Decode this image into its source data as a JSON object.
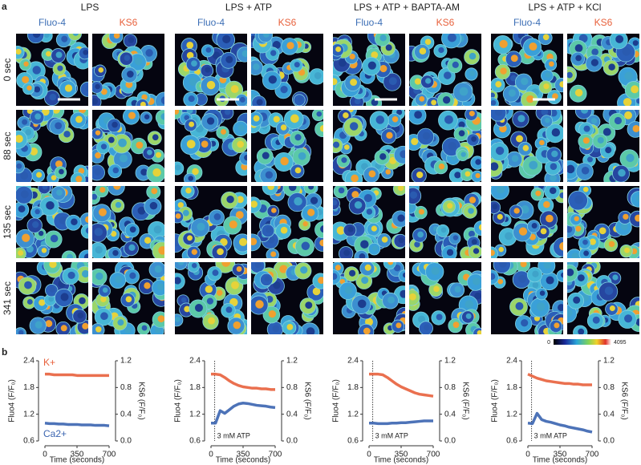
{
  "panel_a": {
    "label": "a",
    "conditions": [
      "LPS",
      "LPS + ATP",
      "LPS + ATP + BAPTA-AM",
      "LPS + ATP + KCl"
    ],
    "channels": [
      "Fluo-4",
      "KS6"
    ],
    "times": [
      "0 sec",
      "88 sec",
      "135 sec",
      "341 sec"
    ],
    "colorbar": [
      0,
      4095
    ]
  },
  "panel_b": {
    "label": "b"
  },
  "chart_data": [
    {
      "type": "line",
      "x": [
        0,
        50,
        100,
        150,
        200,
        250,
        300,
        350,
        400,
        450,
        500,
        550,
        600,
        650,
        700
      ],
      "xlim": [
        0,
        700
      ],
      "xticks": [
        0,
        350,
        700
      ],
      "xlabel": "Time (seconds)",
      "ylim": [
        0.6,
        2.4
      ],
      "yticks": [
        0.6,
        1.2,
        1.8,
        2.4
      ],
      "ylabel": "Fluo4 (F/F₀)",
      "y2lim": [
        0,
        1.2
      ],
      "y2ticks": [
        {
          "value": 0,
          "label": "0.0"
        },
        0.4,
        0.8,
        1.2
      ],
      "y2label": "KS6 (F/F₀)",
      "series": [
        {
          "name": "K+",
          "color": "#e8613c",
          "axis": "y2",
          "values": [
            1.0,
            1.0,
            0.99,
            0.99,
            0.99,
            0.99,
            0.99,
            0.98,
            0.98,
            0.98,
            0.98,
            0.98,
            0.98,
            0.98,
            0.98
          ]
        },
        {
          "name": "Ca2+",
          "color": "#3a64b0",
          "values": [
            1.0,
            0.99,
            0.99,
            0.98,
            0.98,
            0.97,
            0.97,
            0.97,
            0.96,
            0.96,
            0.96,
            0.95,
            0.95,
            0.95,
            0.94
          ]
        }
      ]
    },
    {
      "type": "line",
      "x": [
        0,
        50,
        100,
        150,
        200,
        250,
        300,
        350,
        400,
        450,
        500,
        550,
        600,
        650,
        700
      ],
      "xlim": [
        0,
        700
      ],
      "xticks": [
        0,
        350,
        700
      ],
      "xlabel": "Time (seconds)",
      "ylim": [
        0.6,
        2.4
      ],
      "yticks": [
        0.6,
        1.2,
        1.8,
        2.4
      ],
      "ylabel": "Fluo4 (F/F₀)",
      "y2lim": [
        0,
        1.2
      ],
      "y2ticks": [
        {
          "value": 0,
          "label": "0.0"
        },
        0.4,
        0.8,
        1.2
      ],
      "y2label": "KS6 (F/F₀)",
      "annotation": {
        "text": "3 mM ATP",
        "x": 40
      },
      "series": [
        {
          "color": "#e8613c",
          "axis": "y2",
          "values": [
            1.0,
            1.0,
            0.99,
            0.95,
            0.9,
            0.86,
            0.83,
            0.81,
            0.8,
            0.79,
            0.79,
            0.78,
            0.78,
            0.77,
            0.77
          ]
        },
        {
          "color": "#3a64b0",
          "values": [
            1.0,
            1.0,
            1.28,
            1.22,
            1.3,
            1.38,
            1.43,
            1.45,
            1.44,
            1.42,
            1.4,
            1.39,
            1.38,
            1.36,
            1.35
          ]
        }
      ]
    },
    {
      "type": "line",
      "x": [
        0,
        50,
        100,
        150,
        200,
        250,
        300,
        350,
        400,
        450,
        500,
        550,
        600,
        650,
        700
      ],
      "xlim": [
        0,
        700
      ],
      "xticks": [
        0,
        350,
        700
      ],
      "xlabel": "Time (seconds)",
      "ylim": [
        0.6,
        2.4
      ],
      "yticks": [
        0.6,
        1.2,
        1.8,
        2.4
      ],
      "ylabel": "Fluo4 (F/F₀)",
      "y2lim": [
        0,
        1.2
      ],
      "y2ticks": [
        {
          "value": 0,
          "label": "0.0"
        },
        0.4,
        0.8,
        1.2
      ],
      "y2label": "KS6 (F/F₀)",
      "annotation": {
        "text": "3 mM ATP",
        "x": 40
      },
      "series": [
        {
          "color": "#e8613c",
          "axis": "y2",
          "values": [
            1.0,
            1.0,
            1.0,
            0.99,
            0.95,
            0.9,
            0.85,
            0.81,
            0.78,
            0.75,
            0.72,
            0.7,
            0.69,
            0.68,
            0.67
          ]
        },
        {
          "color": "#3a64b0",
          "values": [
            1.0,
            1.0,
            0.99,
            0.99,
            0.99,
            1.0,
            1.0,
            1.01,
            1.01,
            1.02,
            1.03,
            1.04,
            1.05,
            1.05,
            1.05
          ]
        }
      ]
    },
    {
      "type": "line",
      "x": [
        0,
        50,
        100,
        150,
        200,
        250,
        300,
        350,
        400,
        450,
        500,
        550,
        600,
        650,
        700
      ],
      "xlim": [
        0,
        700
      ],
      "xticks": [
        0,
        350,
        700
      ],
      "xlabel": "Time (seconds)",
      "ylim": [
        0.6,
        2.4
      ],
      "yticks": [
        0.6,
        1.2,
        1.8,
        2.4
      ],
      "ylabel": "Fluo4 (F/F₀)",
      "y2lim": [
        0,
        1.2
      ],
      "y2ticks": [
        {
          "value": 0,
          "label": "0.0"
        },
        0.4,
        0.8,
        1.2
      ],
      "y2label": "KS6 (F/F₀)",
      "annotation": {
        "text": "3 mM ATP",
        "x": 40
      },
      "series": [
        {
          "color": "#e8613c",
          "axis": "y2",
          "values": [
            1.0,
            0.97,
            0.94,
            0.92,
            0.9,
            0.89,
            0.88,
            0.87,
            0.86,
            0.86,
            0.85,
            0.85,
            0.84,
            0.84,
            0.84
          ]
        },
        {
          "color": "#3a64b0",
          "values": [
            1.0,
            0.99,
            1.22,
            1.08,
            1.04,
            1.02,
            0.99,
            0.96,
            0.94,
            0.91,
            0.89,
            0.87,
            0.85,
            0.82,
            0.8
          ]
        }
      ]
    }
  ]
}
